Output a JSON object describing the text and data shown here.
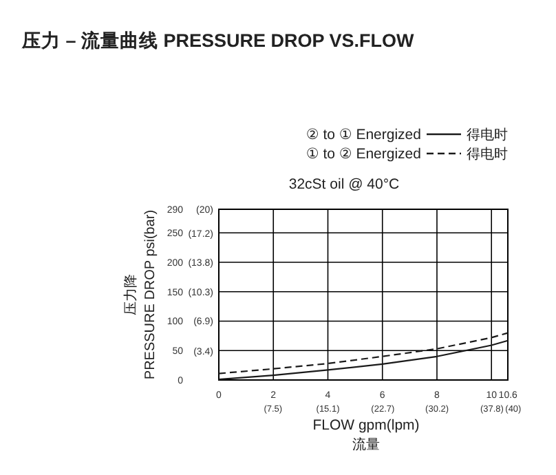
{
  "chart_data": {
    "type": "line",
    "title": "压力 – 流量曲线 PRESSURE DROP VS.FLOW",
    "xlabel": "FLOW  gpm(lpm)\n流量",
    "ylabel": "压力降\nPRESSURE DROP  psi(bar)",
    "annotations": [
      "得电时",
      "得电时",
      "32cSt oil @ 40°C"
    ],
    "x": [
      0,
      2,
      4,
      6,
      8,
      10,
      10.6
    ],
    "series": [
      {
        "name": "② to ① Energized",
        "color": "#1a1a1a",
        "line_style": "solid",
        "values": [
          1,
          8,
          17,
          27,
          40,
          59,
          67
        ]
      },
      {
        "name": "① to ② Energized",
        "color": "#1a1a1a",
        "line_style": "dashed",
        "values": [
          11,
          19,
          28,
          40,
          53,
          72,
          80
        ]
      }
    ],
    "xlim": [
      0,
      10.6
    ],
    "ylim": [
      0,
      290
    ],
    "xticks": [
      0,
      2,
      4,
      6,
      8,
      10,
      10.6
    ],
    "x2lim": [
      0,
      40
    ],
    "x2ticks": [
      {
        "value": 7.5,
        "label": "(7.5)"
      },
      {
        "value": 15.1,
        "label": "(15.1)"
      },
      {
        "value": 22.7,
        "label": "(22.7)"
      },
      {
        "value": 30.2,
        "label": "(30.2)"
      },
      {
        "value": 37.8,
        "label": "(37.8)"
      },
      {
        "value": 40,
        "label": "(40)"
      }
    ],
    "yticks": [
      0,
      50,
      100,
      150,
      200,
      250,
      290
    ],
    "y2lim": [
      0,
      20
    ],
    "y2ticks": [
      {
        "value": 3.4,
        "label": "(3.4)"
      },
      {
        "value": 6.9,
        "label": "(6.9)"
      },
      {
        "value": 10.3,
        "label": "(10.3)"
      },
      {
        "value": 13.8,
        "label": "(13.8)"
      },
      {
        "value": 17.2,
        "label": "(17.2)"
      },
      {
        "value": 20,
        "label": "(20)"
      }
    ],
    "grid": true,
    "legend": "top",
    "marker": "none"
  }
}
